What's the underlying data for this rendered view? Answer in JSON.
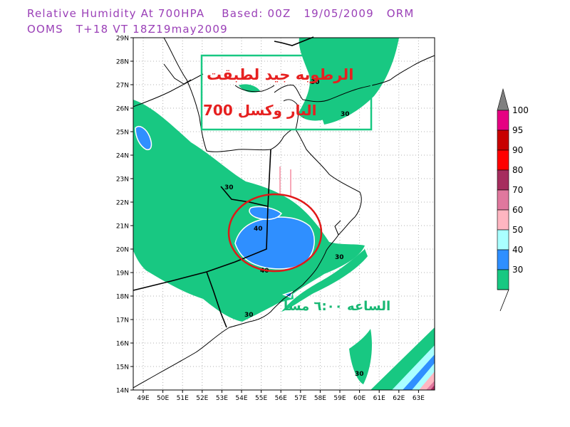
{
  "header": {
    "line1": "Relative Humidity At 700HPA    Based: 00Z   19/05/2009   ORM",
    "line2": "OOMS   T+18 VT 18Z19may2009"
  },
  "map": {
    "lat_labels": [
      "29N",
      "28N",
      "27N",
      "26N",
      "25N",
      "24N",
      "23N",
      "22N",
      "21N",
      "20N",
      "19N",
      "18N",
      "17N",
      "16N",
      "15N",
      "14N"
    ],
    "lon_labels": [
      "49E",
      "50E",
      "51E",
      "52E",
      "53E",
      "54E",
      "55E",
      "56E",
      "57E",
      "58E",
      "59E",
      "60E",
      "61E",
      "62E",
      "63E"
    ],
    "contour_labels": [
      "30",
      "30",
      "30",
      "40",
      "40",
      "30",
      "30",
      "30"
    ],
    "annotation": {
      "line1": "الرطوبه جيد لطبقت",
      "line2": "البار وكسل 700",
      "line3": "الساعه ٦:٠٠ مسا"
    }
  },
  "legend": {
    "levels": [
      "100",
      "95",
      "90",
      "80",
      "70",
      "60",
      "50",
      "40",
      "30"
    ],
    "colors": [
      "#e60082",
      "#c80000",
      "#ff0000",
      "#a62d5e",
      "#e0789e",
      "#ffb6c1",
      "#aaffff",
      "#2f8fff",
      "#18c882"
    ],
    "top_color": "#808080"
  }
}
